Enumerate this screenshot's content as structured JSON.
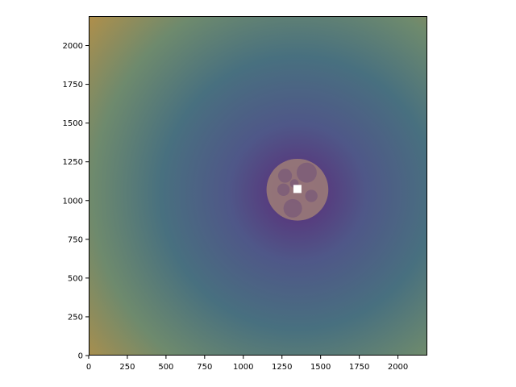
{
  "chart_data": {
    "type": "heatmap",
    "title": "",
    "xlabel": "",
    "ylabel": "",
    "xlim": [
      0,
      2190
    ],
    "ylim": [
      0,
      2190
    ],
    "x_ticks": [
      0,
      250,
      500,
      750,
      1000,
      1250,
      1500,
      1750,
      2000
    ],
    "y_ticks": [
      0,
      250,
      500,
      750,
      1000,
      1250,
      1500,
      1750,
      2000
    ],
    "x_tick_labels": [
      "0",
      "250",
      "500",
      "750",
      "1000",
      "1250",
      "1500",
      "1750",
      "2000"
    ],
    "y_tick_labels": [
      "0",
      "250",
      "500",
      "750",
      "1000",
      "1250",
      "1500",
      "1750",
      "2000"
    ],
    "gradient_center": [
      1350,
      1050
    ],
    "colormap_stops": [
      "#5c2a78",
      "#4f5788",
      "#48707f",
      "#6e8a6d",
      "#b08f4a"
    ],
    "grid": false,
    "overlay": {
      "disc": {
        "center": [
          1350,
          1070
        ],
        "radius": 200,
        "color": "#9a7a78"
      },
      "blobs": [
        {
          "center": [
            1410,
            1180
          ],
          "radius": 65
        },
        {
          "center": [
            1270,
            1160
          ],
          "radius": 45
        },
        {
          "center": [
            1260,
            1070
          ],
          "radius": 40
        },
        {
          "center": [
            1440,
            1030
          ],
          "radius": 40
        },
        {
          "center": [
            1320,
            950
          ],
          "radius": 60
        },
        {
          "center": [
            1330,
            1110
          ],
          "radius": 28
        }
      ],
      "blob_color": "#7a5a78",
      "marker": {
        "position": [
          1350,
          1075
        ],
        "color": "#ffffff"
      }
    }
  }
}
